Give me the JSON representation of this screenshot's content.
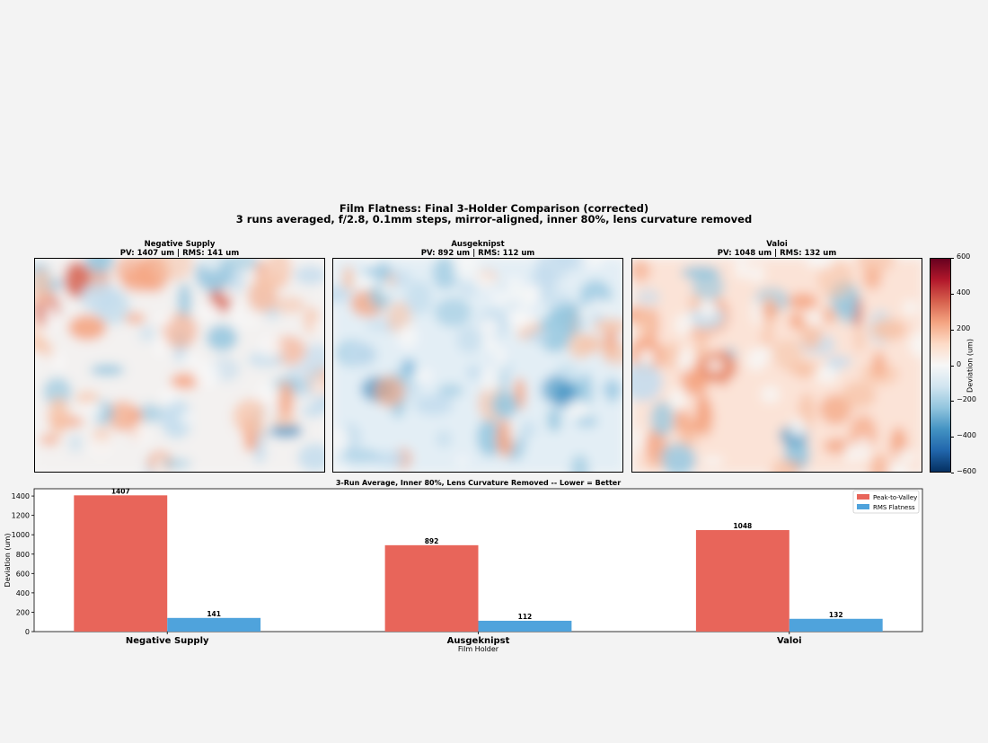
{
  "figure": {
    "title_line1": "Film Flatness: Final 3-Holder Comparison (corrected)",
    "title_line2": "3 runs averaged, f/2.8, 0.1mm steps, mirror-aligned, inner 80%, lens curvature removed"
  },
  "heatmaps": [
    {
      "name": "Negative Supply",
      "subtitle": "PV: 1407 um | RMS: 141 um",
      "bias": 0
    },
    {
      "name": "Ausgeknipst",
      "subtitle": "PV: 892 um | RMS: 112 um",
      "bias": -1
    },
    {
      "name": "Valoi",
      "subtitle": "PV: 1048 um | RMS: 132 um",
      "bias": 1
    }
  ],
  "colorbar": {
    "label": "Deviation (um)",
    "colormap": "RdBu_r",
    "range": [
      -600,
      600
    ],
    "ticks": [
      "600",
      "400",
      "200",
      "0",
      "−200",
      "−400",
      "−600"
    ]
  },
  "chart_data": {
    "type": "bar",
    "title": "3-Run Average, Inner 80%, Lens Curvature Removed -- Lower = Better",
    "xlabel": "Film Holder",
    "ylabel": "Deviation (um)",
    "categories": [
      "Negative Supply",
      "Ausgeknipst",
      "Valoi"
    ],
    "series": [
      {
        "name": "Peak-to-Valley",
        "color": "#e8655a",
        "values": [
          1407,
          892,
          1048
        ]
      },
      {
        "name": "RMS Flatness",
        "color": "#4fa3dc",
        "values": [
          141,
          112,
          132
        ]
      }
    ],
    "ylim": [
      0,
      1475
    ],
    "yticks": [
      0,
      200,
      400,
      600,
      800,
      1000,
      1200,
      1400
    ],
    "legend": "top-right",
    "grid": false
  }
}
